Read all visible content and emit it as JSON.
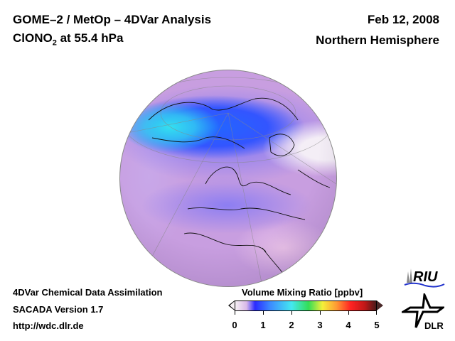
{
  "header": {
    "title_line1": "GOME–2 / MetOp – 4DVar Analysis",
    "species": "ClONO",
    "species_sub": "2",
    "title_line2_rest": " at 55.4 hPa",
    "date": "Feb 12, 2008",
    "region": "Northern Hemisphere"
  },
  "map": {
    "projection": "orthographic",
    "view": "Northern Hemisphere",
    "field": "ClONO2 volume mixing ratio"
  },
  "footer": {
    "line1": "4DVar Chemical Data Assimilation",
    "line2": "SACADA Version 1.7",
    "line3": "http://wdc.dlr.de"
  },
  "colorbar": {
    "title": "Volume Mixing Ratio [ppbv]",
    "ticks": [
      "0",
      "1",
      "2",
      "3",
      "4",
      "5"
    ],
    "range": [
      0,
      5
    ],
    "colors": [
      "#f6f0f4",
      "#d8b8e8",
      "#2b2bff",
      "#3c8cff",
      "#44e8f0",
      "#33dd55",
      "#f5f03a",
      "#ff9933",
      "#ff2222",
      "#c01818",
      "#4a1a1a"
    ]
  },
  "logos": {
    "riu": "RIU",
    "dlr": "DLR"
  }
}
